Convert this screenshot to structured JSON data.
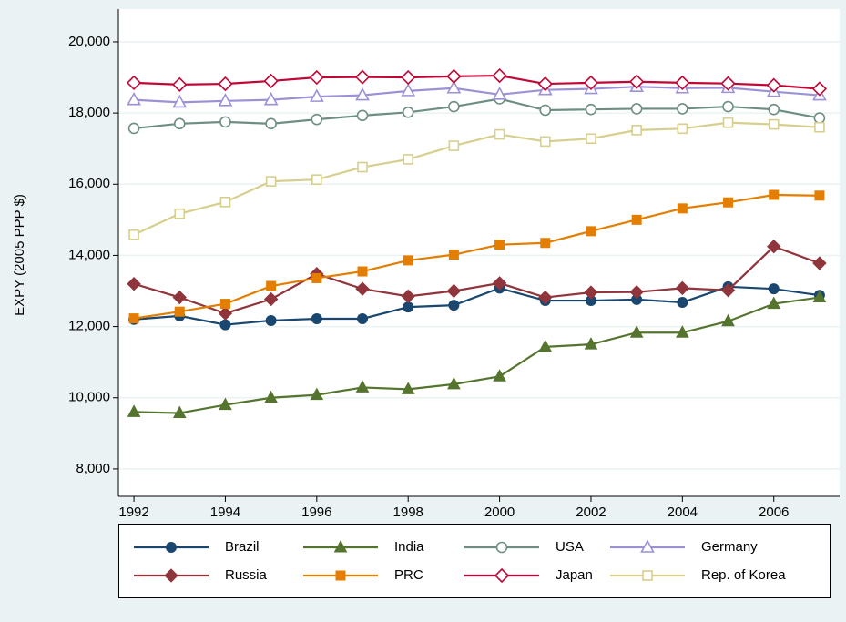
{
  "chart_data": {
    "type": "line",
    "y_label": "EXPY (2005 PPP $)",
    "x": [
      1992,
      1993,
      1994,
      1995,
      1996,
      1997,
      1998,
      1999,
      2000,
      2001,
      2002,
      2003,
      2004,
      2005,
      2006,
      2007
    ],
    "xlim": [
      1991.66,
      2007.44
    ],
    "xticks": [
      1992,
      1994,
      1996,
      1998,
      2000,
      2002,
      2004,
      2006
    ],
    "ylim": [
      7230,
      20920
    ],
    "yticks": [
      {
        "value": 8000,
        "label": "8,000"
      },
      {
        "value": 10000,
        "label": "10,000"
      },
      {
        "value": 12000,
        "label": "12,000"
      },
      {
        "value": 14000,
        "label": "14,000"
      },
      {
        "value": 16000,
        "label": "16,000"
      },
      {
        "value": 18000,
        "label": "18,000"
      },
      {
        "value": 20000,
        "label": "20,000"
      }
    ],
    "grid": true,
    "legend": "bottom",
    "series": [
      {
        "name": "Brazil",
        "color": "#1a476f",
        "marker": "circle",
        "values": [
          12200,
          12300,
          12050,
          12170,
          12220,
          12220,
          12550,
          12600,
          13080,
          12730,
          12730,
          12760,
          12680,
          13120,
          13060,
          12880
        ]
      },
      {
        "name": "India",
        "color": "#55752f",
        "marker": "triangle",
        "values": [
          9600,
          9570,
          9800,
          10000,
          10080,
          10290,
          10240,
          10380,
          10600,
          11430,
          11500,
          11830,
          11830,
          12150,
          12640,
          12820
        ]
      },
      {
        "name": "USA",
        "color": "#6e8e84",
        "marker": "circle-open",
        "values": [
          17570,
          17700,
          17750,
          17700,
          17820,
          17930,
          18020,
          18180,
          18400,
          18080,
          18100,
          18120,
          18120,
          18180,
          18100,
          17860
        ]
      },
      {
        "name": "Germany",
        "color": "#9b92d6",
        "marker": "triangle-open",
        "values": [
          18370,
          18300,
          18340,
          18370,
          18460,
          18500,
          18620,
          18700,
          18520,
          18650,
          18680,
          18740,
          18700,
          18710,
          18600,
          18500
        ]
      },
      {
        "name": "Russia",
        "color": "#90353b",
        "marker": "diamond",
        "values": [
          13200,
          12820,
          12370,
          12770,
          13480,
          13060,
          12850,
          13000,
          13220,
          12820,
          12960,
          12970,
          13080,
          13020,
          14250,
          13780
        ]
      },
      {
        "name": "PRC",
        "color": "#e37e00",
        "marker": "square",
        "values": [
          12230,
          12420,
          12640,
          13140,
          13360,
          13550,
          13860,
          14020,
          14300,
          14350,
          14680,
          15000,
          15320,
          15490,
          15700,
          15680
        ]
      },
      {
        "name": "Japan",
        "color": "#c10534",
        "marker": "diamond-open",
        "values": [
          18850,
          18800,
          18820,
          18900,
          19000,
          19010,
          19000,
          19030,
          19050,
          18820,
          18850,
          18880,
          18850,
          18830,
          18780,
          18680
        ]
      },
      {
        "name": "Rep. of Korea",
        "color": "#d6cf8e",
        "marker": "square-open",
        "values": [
          14580,
          15170,
          15500,
          16080,
          16130,
          16480,
          16700,
          17080,
          17400,
          17200,
          17280,
          17520,
          17560,
          17730,
          17680,
          17600
        ]
      }
    ]
  }
}
